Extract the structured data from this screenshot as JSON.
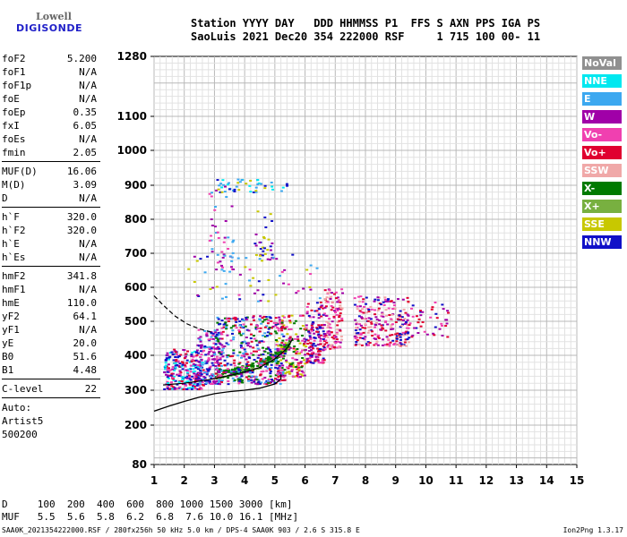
{
  "logo": {
    "top": "Lowell",
    "bottom": "DIGISONDE"
  },
  "header": {
    "line1": "Station YYYY DAY   DDD HHMMSS P1  FFS S AXN PPS IGA PS",
    "line2": "SaoLuis 2021 Dec20 354 222000 RSF     1 715 100 00- 11"
  },
  "params": [
    {
      "group": [
        {
          "k": "foF2",
          "v": "5.200"
        },
        {
          "k": "foF1",
          "v": "N/A"
        },
        {
          "k": "foF1p",
          "v": "N/A"
        },
        {
          "k": "foE",
          "v": "N/A"
        },
        {
          "k": "foEp",
          "v": "0.35"
        },
        {
          "k": "fxI",
          "v": "6.05"
        },
        {
          "k": "foEs",
          "v": "N/A"
        },
        {
          "k": "fmin",
          "v": "2.05"
        }
      ]
    },
    {
      "group": [
        {
          "k": "MUF(D)",
          "v": "16.06"
        },
        {
          "k": "M(D)",
          "v": "3.09"
        },
        {
          "k": "D",
          "v": "N/A"
        }
      ]
    },
    {
      "group": [
        {
          "k": "h`F",
          "v": "320.0"
        },
        {
          "k": "h`F2",
          "v": "320.0"
        },
        {
          "k": "h`E",
          "v": "N/A"
        },
        {
          "k": "h`Es",
          "v": "N/A"
        }
      ]
    },
    {
      "group": [
        {
          "k": "hmF2",
          "v": "341.8"
        },
        {
          "k": "hmF1",
          "v": "N/A"
        },
        {
          "k": "hmE",
          "v": "110.0"
        },
        {
          "k": "yF2",
          "v": "64.1"
        },
        {
          "k": "yF1",
          "v": "N/A"
        },
        {
          "k": "yE",
          "v": "20.0"
        },
        {
          "k": "B0",
          "v": "51.6"
        },
        {
          "k": "B1",
          "v": "4.48"
        }
      ]
    },
    {
      "group": [
        {
          "k": "C-level",
          "v": "22"
        }
      ]
    }
  ],
  "auto": [
    "Auto:",
    "Artist5",
    "500200"
  ],
  "legend": [
    {
      "label": "NoVal",
      "color": "#909090"
    },
    {
      "label": "NNE",
      "color": "#00e8f0"
    },
    {
      "label": "E",
      "color": "#3ca8f0"
    },
    {
      "label": "W",
      "color": "#a000a8"
    },
    {
      "label": "Vo-",
      "color": "#f040b0"
    },
    {
      "label": "Vo+",
      "color": "#e00030"
    },
    {
      "label": "SSW",
      "color": "#f0a8a8"
    },
    {
      "label": "X-",
      "color": "#007a00"
    },
    {
      "label": "X+",
      "color": "#78b040"
    },
    {
      "label": "SSE",
      "color": "#c8c800"
    },
    {
      "label": "NNW",
      "color": "#1010c8"
    }
  ],
  "chart_data": {
    "type": "scatter",
    "xlim": [
      1,
      15
    ],
    "ylim": [
      80,
      1280
    ],
    "x_ticks": [
      "1",
      "2",
      "3",
      "4",
      "5",
      "6",
      "7",
      "8",
      "9",
      "10",
      "11",
      "12",
      "13",
      "14",
      "15"
    ],
    "y_ticks": [
      "1280",
      "1100",
      "1000",
      "900",
      "800",
      "700",
      "600",
      "500",
      "400",
      "300",
      "200",
      "80"
    ],
    "grid": true,
    "profile_curve": [
      [
        1.0,
        240
      ],
      [
        1.5,
        255
      ],
      [
        2.0,
        268
      ],
      [
        2.5,
        280
      ],
      [
        3.0,
        290
      ],
      [
        3.5,
        296
      ],
      [
        4.0,
        300
      ],
      [
        4.5,
        306
      ],
      [
        5.0,
        318
      ],
      [
        5.2,
        332
      ],
      [
        5.2,
        345
      ]
    ],
    "fit_dashed": [
      [
        1.0,
        575
      ],
      [
        1.3,
        548
      ],
      [
        1.7,
        515
      ],
      [
        2.1,
        492
      ],
      [
        2.5,
        478
      ],
      [
        2.9,
        468
      ]
    ],
    "fit_X": [
      [
        1.3,
        315
      ],
      [
        2.0,
        320
      ],
      [
        2.8,
        330
      ],
      [
        3.5,
        342
      ],
      [
        4.0,
        352
      ],
      [
        4.5,
        365
      ],
      [
        5.0,
        390
      ],
      [
        5.4,
        420
      ],
      [
        5.6,
        450
      ]
    ],
    "clusters": [
      {
        "x": [
          1.3,
          2.6
        ],
        "y": [
          305,
          420
        ],
        "n": 260,
        "colors": [
          "#1010c8",
          "#a000a8",
          "#f040b0",
          "#e00030",
          "#00e8f0"
        ]
      },
      {
        "x": [
          2.4,
          3.2
        ],
        "y": [
          320,
          480
        ],
        "n": 180,
        "colors": [
          "#1010c8",
          "#a000a8",
          "#f040b0",
          "#3ca8f0"
        ]
      },
      {
        "x": [
          3.0,
          5.3
        ],
        "y": [
          320,
          520
        ],
        "n": 420,
        "colors": [
          "#1010c8",
          "#a000a8",
          "#f040b0",
          "#e00030",
          "#3ca8f0",
          "#007a00"
        ]
      },
      {
        "x": [
          5.0,
          6.0
        ],
        "y": [
          340,
          520
        ],
        "n": 160,
        "colors": [
          "#e00030",
          "#f040b0",
          "#a000a8",
          "#007a00",
          "#c8c800"
        ]
      },
      {
        "x": [
          6.0,
          6.6
        ],
        "y": [
          380,
          560
        ],
        "n": 140,
        "colors": [
          "#e00030",
          "#f040b0",
          "#a000a8",
          "#1010c8"
        ]
      },
      {
        "x": [
          6.6,
          7.2
        ],
        "y": [
          420,
          600
        ],
        "n": 120,
        "colors": [
          "#e00030",
          "#f040b0",
          "#f0a8a8",
          "#a000a8"
        ]
      },
      {
        "x": [
          7.6,
          9.4
        ],
        "y": [
          430,
          580
        ],
        "n": 240,
        "colors": [
          "#1010c8",
          "#a000a8",
          "#f040b0",
          "#e00030",
          "#f0a8a8"
        ]
      },
      {
        "x": [
          9.3,
          10.7
        ],
        "y": [
          450,
          560
        ],
        "n": 50,
        "colors": [
          "#a000a8",
          "#f040b0",
          "#1010c8",
          "#e00030"
        ]
      },
      {
        "x": [
          2.8,
          3.6
        ],
        "y": [
          650,
          900
        ],
        "n": 45,
        "colors": [
          "#a000a8",
          "#f040b0",
          "#3ca8f0"
        ]
      },
      {
        "x": [
          3.0,
          5.4
        ],
        "y": [
          880,
          920
        ],
        "n": 45,
        "colors": [
          "#3ca8f0",
          "#00e8f0",
          "#1010c8",
          "#c8c800"
        ]
      },
      {
        "x": [
          4.3,
          4.9
        ],
        "y": [
          680,
          830
        ],
        "n": 30,
        "colors": [
          "#a000a8",
          "#1010c8",
          "#c8c800"
        ]
      },
      {
        "x": [
          2.0,
          6.5
        ],
        "y": [
          560,
          700
        ],
        "n": 60,
        "colors": [
          "#1010c8",
          "#a000a8",
          "#f040b0",
          "#c8c800",
          "#3ca8f0"
        ]
      }
    ],
    "green_band": {
      "x": [
        3.0,
        5.5
      ],
      "dy": 22
    }
  },
  "dtable": {
    "d_row": "D     100  200  400  600  800 1000 1500 3000 [km]",
    "muf_row": "MUF   5.5  5.6  5.8  6.2  6.8  7.6 10.0 16.1 [MHz]"
  },
  "footer": "SAA0K_2021354222000.RSF / 280fx256h 50 kHz 5.0 km / DPS-4 SAA0K 903 / 2.6 S 315.8 E",
  "version": "Ion2Png 1.3.17"
}
